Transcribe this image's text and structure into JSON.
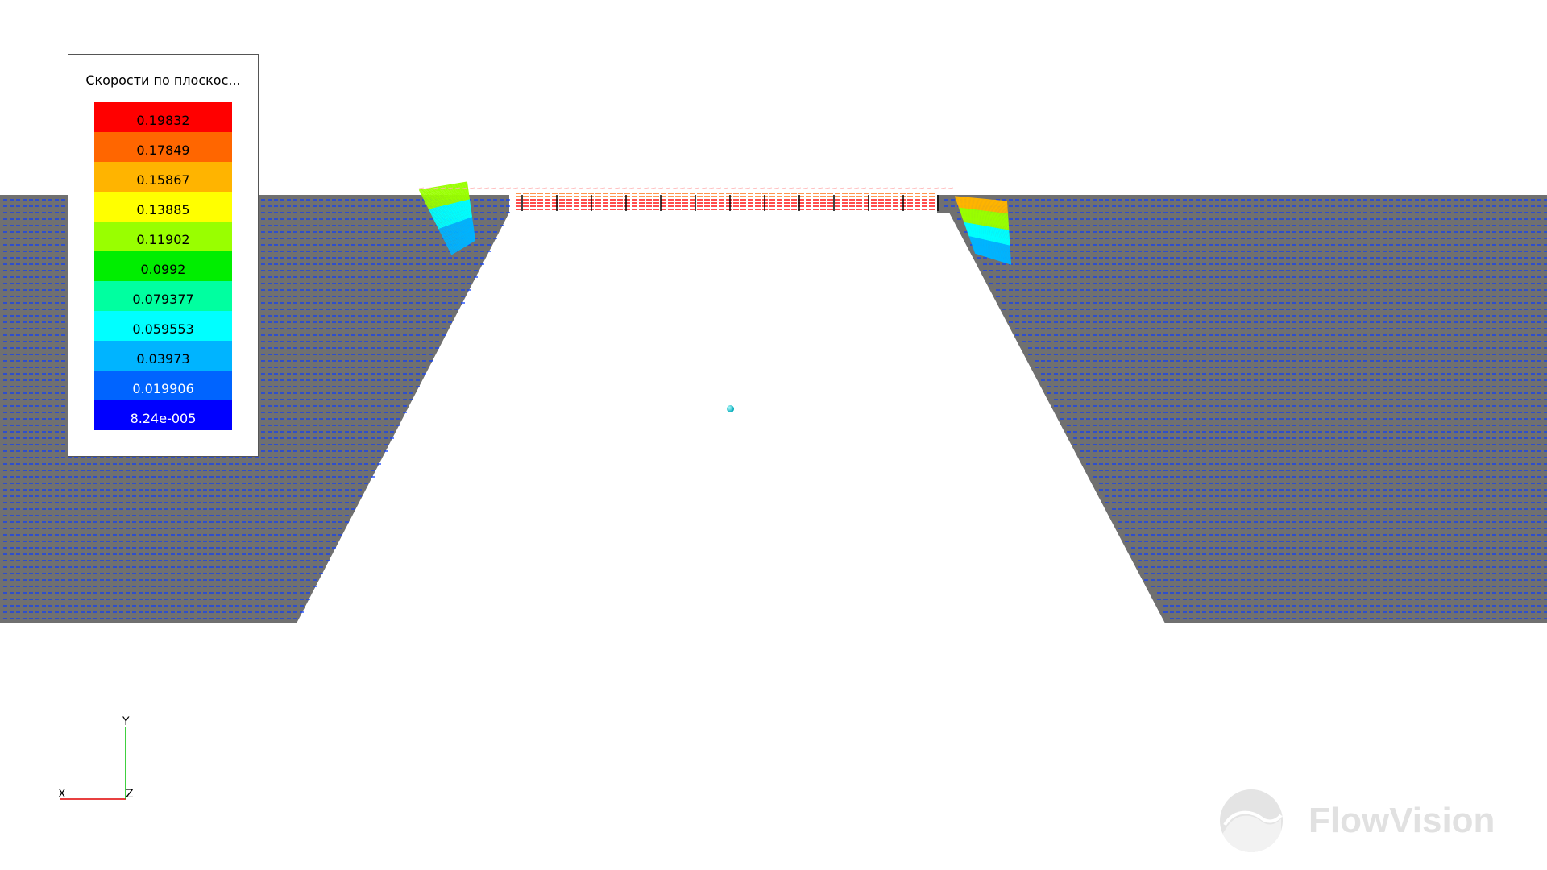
{
  "legend": {
    "title": "Скорости по плоскос...",
    "entries": [
      {
        "label": "0.19832",
        "color": "#ff0000",
        "text_color": "#000000"
      },
      {
        "label": "0.17849",
        "color": "#ff6600",
        "text_color": "#000000"
      },
      {
        "label": "0.15867",
        "color": "#ffb400",
        "text_color": "#000000"
      },
      {
        "label": "0.13885",
        "color": "#ffff00",
        "text_color": "#000000"
      },
      {
        "label": "0.11902",
        "color": "#99ff00",
        "text_color": "#000000"
      },
      {
        "label": "0.0992",
        "color": "#00ee00",
        "text_color": "#000000"
      },
      {
        "label": "0.079377",
        "color": "#00ffa0",
        "text_color": "#000000"
      },
      {
        "label": "0.059553",
        "color": "#00ffff",
        "text_color": "#000000"
      },
      {
        "label": "0.03973",
        "color": "#00b4ff",
        "text_color": "#000000"
      },
      {
        "label": "0.019906",
        "color": "#0064ff",
        "text_color": "#ffffff"
      },
      {
        "label": "8.24e-005",
        "color": "#0000ff",
        "text_color": "#ffffff"
      }
    ]
  },
  "axes": {
    "x_label": "X",
    "y_label": "Y",
    "z_label": "Z"
  },
  "brand": {
    "name": "FlowVision"
  },
  "colors": {
    "background": "#ffffff",
    "domain_fill": "#707070",
    "vector_low": "#0a3cff",
    "axis_x": "#e00000",
    "axis_y": "#00c000"
  }
}
